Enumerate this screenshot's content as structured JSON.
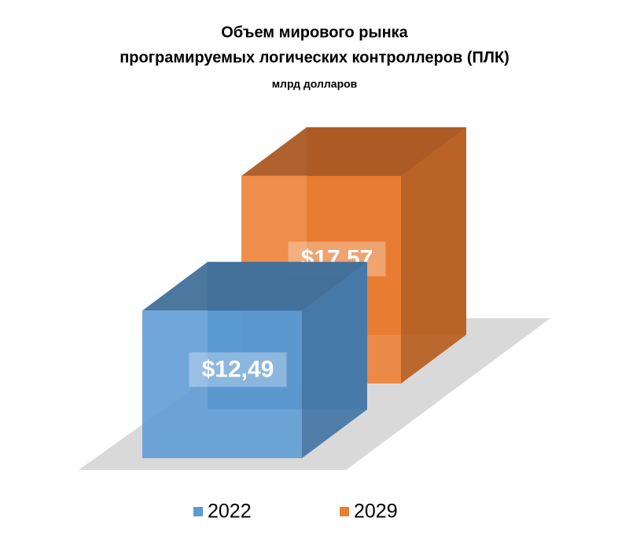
{
  "chart_data": {
    "type": "bar3d",
    "title": [
      "Объем мирового рынка",
      "програмируемых логических контроллеров (ПЛК)"
    ],
    "subtitle": "млрд долларов",
    "series": [
      {
        "name": "2022",
        "color": "#5b9bd5",
        "values": [
          12.49
        ],
        "value_labels": [
          "$12,49"
        ]
      },
      {
        "name": "2029",
        "color": "#ed7d31",
        "values": [
          17.57
        ],
        "value_labels": [
          "$17,57"
        ]
      }
    ]
  }
}
